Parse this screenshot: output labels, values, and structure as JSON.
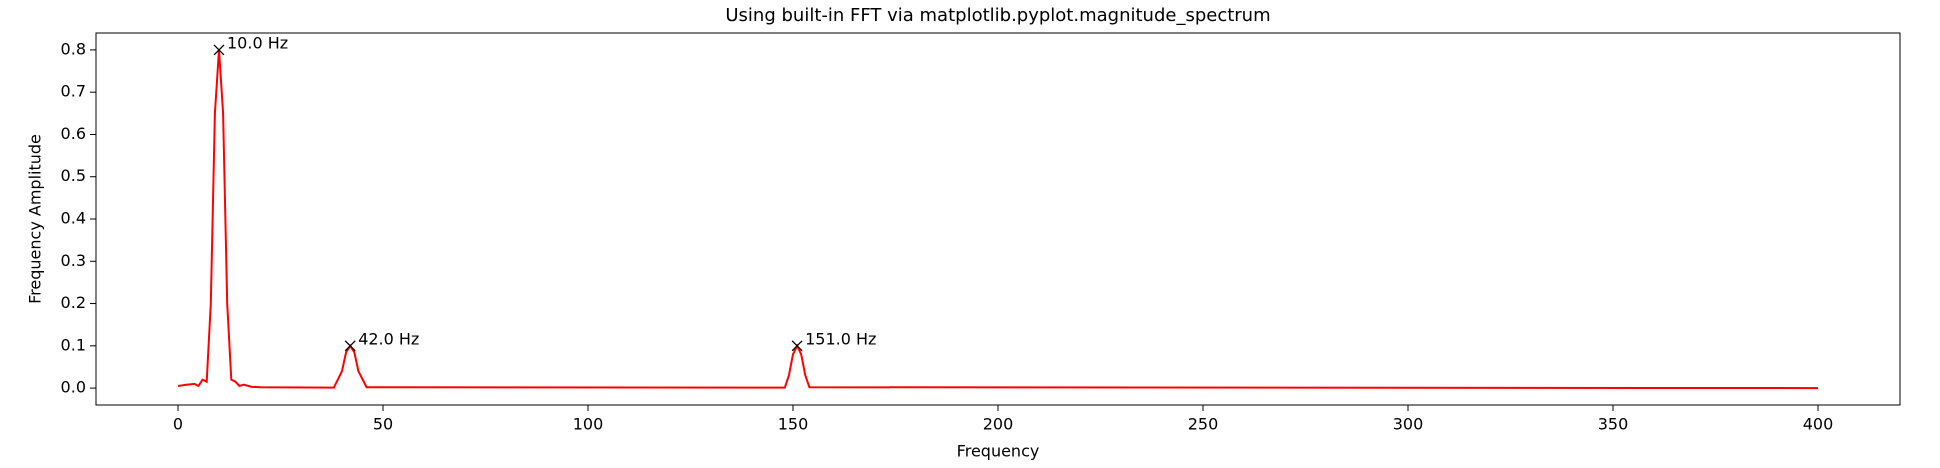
{
  "chart_data": {
    "type": "line",
    "title": "Using built-in FFT via matplotlib.pyplot.magnitude_spectrum",
    "x_label": "Frequency",
    "y_label": "Frequency Amplitude",
    "x": [
      0,
      2,
      4,
      5,
      6,
      7,
      8,
      9,
      10,
      11,
      12,
      13,
      14,
      15,
      16,
      18,
      20,
      38,
      40,
      41,
      42,
      43,
      44,
      46,
      148,
      149,
      150,
      151,
      152,
      153,
      154,
      400
    ],
    "series": [
      {
        "color": "#ff0000",
        "values": [
          0.005,
          0.008,
          0.01,
          0.005,
          0.02,
          0.015,
          0.2,
          0.65,
          0.8,
          0.65,
          0.2,
          0.02,
          0.015,
          0.005,
          0.008,
          0.003,
          0.002,
          0.001,
          0.04,
          0.085,
          0.1,
          0.085,
          0.04,
          0.002,
          0.001,
          0.03,
          0.08,
          0.1,
          0.08,
          0.03,
          0.002,
          0
        ]
      }
    ],
    "peaks": {
      "x": [
        10,
        42,
        151
      ],
      "values": [
        0.8,
        0.1,
        0.1
      ],
      "labels": [
        "10.0 Hz",
        "42.0 Hz",
        "151.0 Hz"
      ],
      "color": "#000000"
    },
    "xlim": [
      -20,
      420
    ],
    "ylim": [
      -0.04,
      0.84
    ],
    "xticks": [
      0,
      50,
      100,
      150,
      200,
      250,
      300,
      350,
      400
    ],
    "yticks": [
      {
        "value": 0,
        "label": "0.0"
      },
      0.1,
      0.2,
      0.3,
      0.4,
      0.5,
      0.6,
      0.7,
      0.8
    ],
    "grid": false
  }
}
